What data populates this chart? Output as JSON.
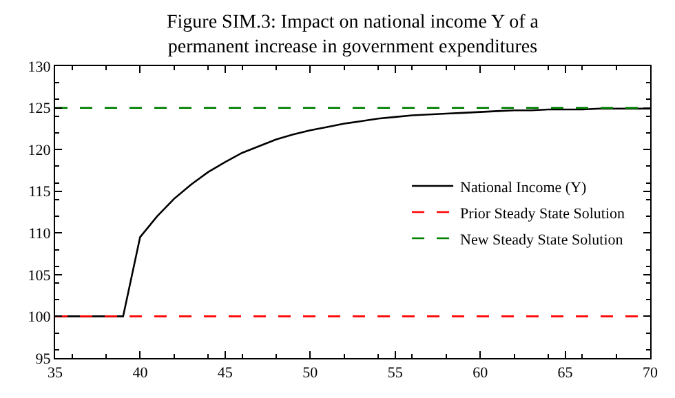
{
  "chart_data": {
    "type": "line",
    "title": "Figure SIM.3: Impact on national income Y of a\npermanent increase in government expenditures",
    "x": [
      35,
      36,
      37,
      38,
      39,
      40,
      41,
      42,
      43,
      44,
      45,
      46,
      47,
      48,
      49,
      50,
      51,
      52,
      53,
      54,
      55,
      56,
      57,
      58,
      59,
      60,
      61,
      62,
      63,
      64,
      65,
      66,
      67,
      68,
      69,
      70
    ],
    "series": [
      {
        "name": "National Income (Y)",
        "color": "#000000",
        "values": [
          100,
          100,
          100,
          100,
          100,
          109.5,
          112.0,
          114.1,
          115.8,
          117.3,
          118.5,
          119.6,
          120.4,
          121.2,
          121.8,
          122.3,
          122.7,
          123.1,
          123.4,
          123.7,
          123.9,
          124.1,
          124.2,
          124.3,
          124.4,
          124.5,
          124.6,
          124.7,
          124.7,
          124.8,
          124.8,
          124.8,
          124.9,
          124.9,
          124.9,
          124.9
        ]
      }
    ],
    "ref_lines": [
      {
        "axis": "y",
        "value": 100,
        "label": "Prior Steady State Solution",
        "color": "#ff0000",
        "line_style": "dashed"
      },
      {
        "axis": "y",
        "value": 125,
        "label": "New Steady State Solution",
        "color": "#008000",
        "line_style": "dashed"
      }
    ],
    "xlim": [
      35,
      70
    ],
    "xticks": [
      35,
      40,
      45,
      50,
      55,
      60,
      65,
      70
    ],
    "ylim": [
      95,
      130
    ],
    "yticks": [
      95,
      100,
      105,
      110,
      115,
      120,
      125,
      130
    ],
    "legend": "right",
    "line_style": "solid",
    "marker": "none"
  }
}
